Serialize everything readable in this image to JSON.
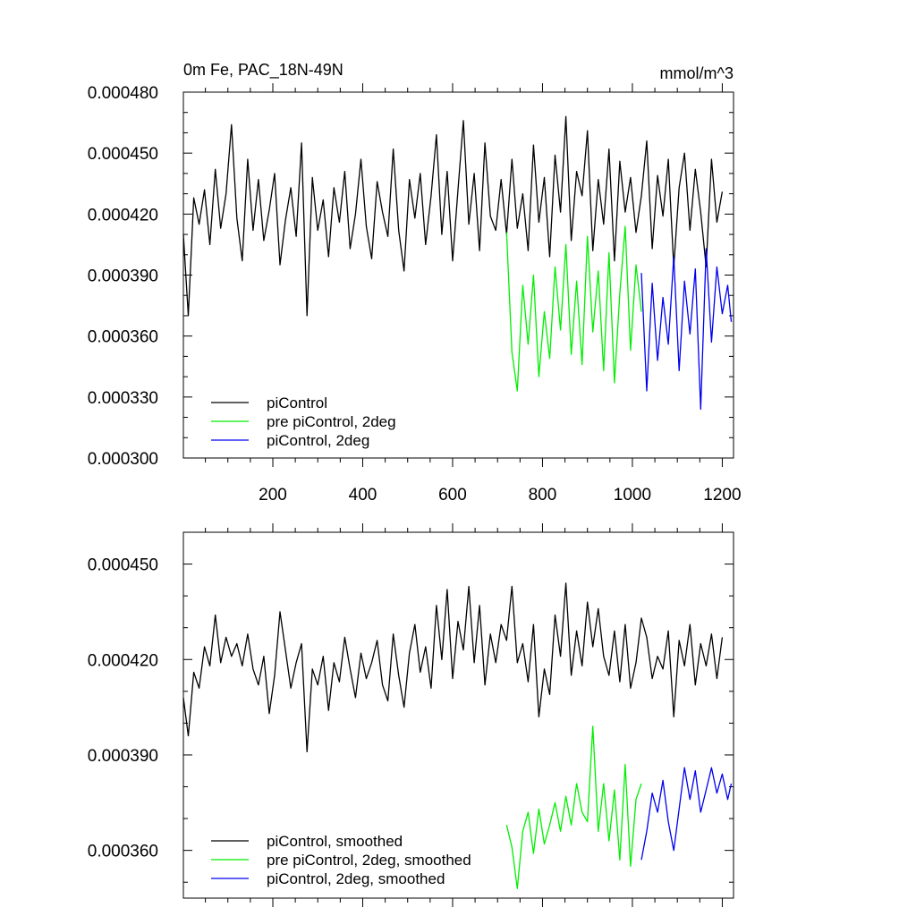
{
  "chart_data": [
    {
      "type": "line",
      "title": "0m Fe, PAC_18N-49N",
      "units": "mmol/m^3",
      "xlabel": "",
      "ylabel": "",
      "xlim": [
        1,
        1225
      ],
      "ylim": [
        0.0003,
        0.00048
      ],
      "xticks": [
        "200",
        "400",
        "600",
        "800",
        "1000",
        "1200"
      ],
      "xtick_values": [
        200,
        400,
        600,
        800,
        1000,
        1200
      ],
      "yticks": [
        "0.000300",
        "0.000330",
        "0.000360",
        "0.000390",
        "0.000420",
        "0.000450",
        "0.000480"
      ],
      "ytick_values": [
        0.0003,
        0.00033,
        0.00036,
        0.00039,
        0.00042,
        0.00045,
        0.00048
      ],
      "legend_position": "bottom-left",
      "series": [
        {
          "name": "piControl",
          "color": "#000000",
          "x": [
            1,
            12,
            24,
            36,
            48,
            60,
            72,
            84,
            96,
            108,
            120,
            132,
            144,
            156,
            168,
            180,
            192,
            204,
            216,
            228,
            240,
            252,
            264,
            276,
            288,
            300,
            312,
            324,
            336,
            348,
            360,
            372,
            384,
            396,
            408,
            420,
            432,
            444,
            456,
            468,
            480,
            492,
            504,
            516,
            528,
            540,
            552,
            564,
            576,
            588,
            600,
            612,
            624,
            636,
            648,
            660,
            672,
            684,
            696,
            708,
            720,
            732,
            744,
            756,
            768,
            780,
            792,
            804,
            816,
            828,
            840,
            852,
            864,
            876,
            888,
            900,
            912,
            924,
            936,
            948,
            960,
            972,
            984,
            996,
            1008,
            1020,
            1032,
            1044,
            1056,
            1068,
            1080,
            1092,
            1104,
            1116,
            1128,
            1140,
            1152,
            1164,
            1176,
            1188,
            1200
          ],
          "y": [
            0.00041,
            0.00037,
            0.000428,
            0.000415,
            0.000432,
            0.000405,
            0.000442,
            0.000413,
            0.00043,
            0.000464,
            0.000418,
            0.000397,
            0.000447,
            0.000412,
            0.000437,
            0.000407,
            0.000422,
            0.00044,
            0.000395,
            0.000417,
            0.000433,
            0.000409,
            0.000455,
            0.00037,
            0.000438,
            0.000412,
            0.000427,
            0.000399,
            0.000433,
            0.000416,
            0.000441,
            0.000403,
            0.00042,
            0.000447,
            0.000414,
            0.000398,
            0.000436,
            0.000421,
            0.000409,
            0.000452,
            0.000412,
            0.000392,
            0.000437,
            0.000418,
            0.00044,
            0.000405,
            0.000429,
            0.000459,
            0.00041,
            0.000441,
            0.000397,
            0.000432,
            0.000466,
            0.000415,
            0.00044,
            0.000402,
            0.000455,
            0.000419,
            0.000412,
            0.000437,
            0.00041,
            0.000447,
            0.000413,
            0.00043,
            0.000402,
            0.000454,
            0.000416,
            0.000438,
            0.000399,
            0.000449,
            0.000421,
            0.000468,
            0.000407,
            0.000441,
            0.000429,
            0.000461,
            0.000402,
            0.000437,
            0.000415,
            0.000452,
            0.000397,
            0.000446,
            0.000421,
            0.000438,
            0.000411,
            0.000429,
            0.000456,
            0.000403,
            0.000439,
            0.000419,
            0.000447,
            0.000394,
            0.000433,
            0.00045,
            0.000412,
            0.000442,
            0.000421,
            0.000394,
            0.000447,
            0.000416,
            0.000431
          ]
        },
        {
          "name": "pre piControl, 2deg",
          "color": "#00ee00",
          "x": [
            720,
            732,
            744,
            756,
            768,
            780,
            792,
            804,
            816,
            828,
            840,
            852,
            864,
            876,
            888,
            900,
            912,
            924,
            936,
            948,
            960,
            972,
            984,
            996,
            1008,
            1020
          ],
          "y": [
            0.000411,
            0.000352,
            0.000333,
            0.000385,
            0.000356,
            0.00039,
            0.00034,
            0.000372,
            0.000349,
            0.000394,
            0.000363,
            0.000405,
            0.000351,
            0.000387,
            0.000346,
            0.000409,
            0.000362,
            0.000392,
            0.000343,
            0.000401,
            0.000337,
            0.000381,
            0.000414,
            0.000353,
            0.000395,
            0.000372
          ]
        },
        {
          "name": "piControl, 2deg",
          "color": "#0000ee",
          "x": [
            1020,
            1032,
            1044,
            1056,
            1068,
            1080,
            1092,
            1104,
            1116,
            1128,
            1140,
            1152,
            1164,
            1176,
            1188,
            1200,
            1212,
            1220
          ],
          "y": [
            0.000391,
            0.000333,
            0.000386,
            0.000348,
            0.000379,
            0.000356,
            0.000399,
            0.000343,
            0.000387,
            0.000361,
            0.000393,
            0.000324,
            0.000403,
            0.000357,
            0.000394,
            0.000371,
            0.000385,
            0.000367
          ]
        }
      ]
    },
    {
      "type": "line",
      "title": "",
      "xlabel": "",
      "ylabel": "",
      "xlim": [
        1,
        1225
      ],
      "ylim": [
        0.000345,
        0.00046
      ],
      "yticks": [
        "0.000360",
        "0.000390",
        "0.000420",
        "0.000450"
      ],
      "ytick_values": [
        0.00036,
        0.00039,
        0.00042,
        0.00045
      ],
      "xtick_values": [
        200,
        400,
        600,
        800,
        1000,
        1200
      ],
      "legend_position": "bottom-left",
      "series": [
        {
          "name": "piControl, smoothed",
          "color": "#000000",
          "x": [
            1,
            12,
            24,
            36,
            48,
            60,
            72,
            84,
            96,
            108,
            120,
            132,
            144,
            156,
            168,
            180,
            192,
            204,
            216,
            228,
            240,
            252,
            264,
            276,
            288,
            300,
            312,
            324,
            336,
            348,
            360,
            372,
            384,
            396,
            408,
            420,
            432,
            444,
            456,
            468,
            480,
            492,
            504,
            516,
            528,
            540,
            552,
            564,
            576,
            588,
            600,
            612,
            624,
            636,
            648,
            660,
            672,
            684,
            696,
            708,
            720,
            732,
            744,
            756,
            768,
            780,
            792,
            804,
            816,
            828,
            840,
            852,
            864,
            876,
            888,
            900,
            912,
            924,
            936,
            948,
            960,
            972,
            984,
            996,
            1008,
            1020,
            1032,
            1044,
            1056,
            1068,
            1080,
            1092,
            1104,
            1116,
            1128,
            1140,
            1152,
            1164,
            1176,
            1188,
            1200
          ],
          "y": [
            0.000408,
            0.000396,
            0.000416,
            0.000411,
            0.000424,
            0.000418,
            0.000434,
            0.000419,
            0.000427,
            0.000421,
            0.000425,
            0.000418,
            0.000428,
            0.000417,
            0.000412,
            0.000421,
            0.000403,
            0.000415,
            0.000435,
            0.000423,
            0.000411,
            0.000419,
            0.000425,
            0.000391,
            0.000417,
            0.000412,
            0.000421,
            0.000404,
            0.000419,
            0.000413,
            0.000427,
            0.000417,
            0.000408,
            0.000422,
            0.000414,
            0.000419,
            0.000426,
            0.000412,
            0.000407,
            0.000428,
            0.000415,
            0.000405,
            0.000422,
            0.000431,
            0.000416,
            0.000424,
            0.000411,
            0.000437,
            0.00042,
            0.000442,
            0.000414,
            0.000432,
            0.000423,
            0.000443,
            0.000419,
            0.000437,
            0.000412,
            0.000428,
            0.000419,
            0.000431,
            0.000426,
            0.000443,
            0.000419,
            0.000425,
            0.000413,
            0.000431,
            0.000402,
            0.000417,
            0.000409,
            0.000434,
            0.000421,
            0.000444,
            0.000415,
            0.000429,
            0.000418,
            0.000438,
            0.000424,
            0.000436,
            0.000421,
            0.000415,
            0.000429,
            0.000413,
            0.000431,
            0.000411,
            0.000419,
            0.000433,
            0.000427,
            0.000414,
            0.000421,
            0.000417,
            0.000429,
            0.000402,
            0.000426,
            0.000418,
            0.000431,
            0.000412,
            0.000425,
            0.000418,
            0.000428,
            0.000414,
            0.000427
          ]
        },
        {
          "name": "pre piControl, 2deg, smoothed",
          "color": "#00ee00",
          "x": [
            720,
            732,
            744,
            756,
            768,
            780,
            792,
            804,
            816,
            828,
            840,
            852,
            864,
            876,
            888,
            900,
            912,
            924,
            936,
            948,
            960,
            972,
            984,
            996,
            1008,
            1020
          ],
          "y": [
            0.000368,
            0.000361,
            0.000348,
            0.000366,
            0.000372,
            0.000359,
            0.000373,
            0.000362,
            0.000368,
            0.000375,
            0.000366,
            0.000377,
            0.000368,
            0.000381,
            0.000372,
            0.000369,
            0.000399,
            0.000366,
            0.000381,
            0.000363,
            0.000379,
            0.000357,
            0.000387,
            0.000355,
            0.000376,
            0.000381
          ]
        },
        {
          "name": "piControl, 2deg, smoothed",
          "color": "#0000ee",
          "x": [
            1020,
            1032,
            1044,
            1056,
            1068,
            1080,
            1092,
            1104,
            1116,
            1128,
            1140,
            1152,
            1164,
            1176,
            1188,
            1200,
            1212,
            1220
          ],
          "y": [
            0.000357,
            0.000366,
            0.000378,
            0.000372,
            0.000382,
            0.000369,
            0.00036,
            0.000373,
            0.000386,
            0.000376,
            0.000385,
            0.000372,
            0.000379,
            0.000386,
            0.000378,
            0.000384,
            0.000376,
            0.000381
          ]
        }
      ]
    }
  ]
}
